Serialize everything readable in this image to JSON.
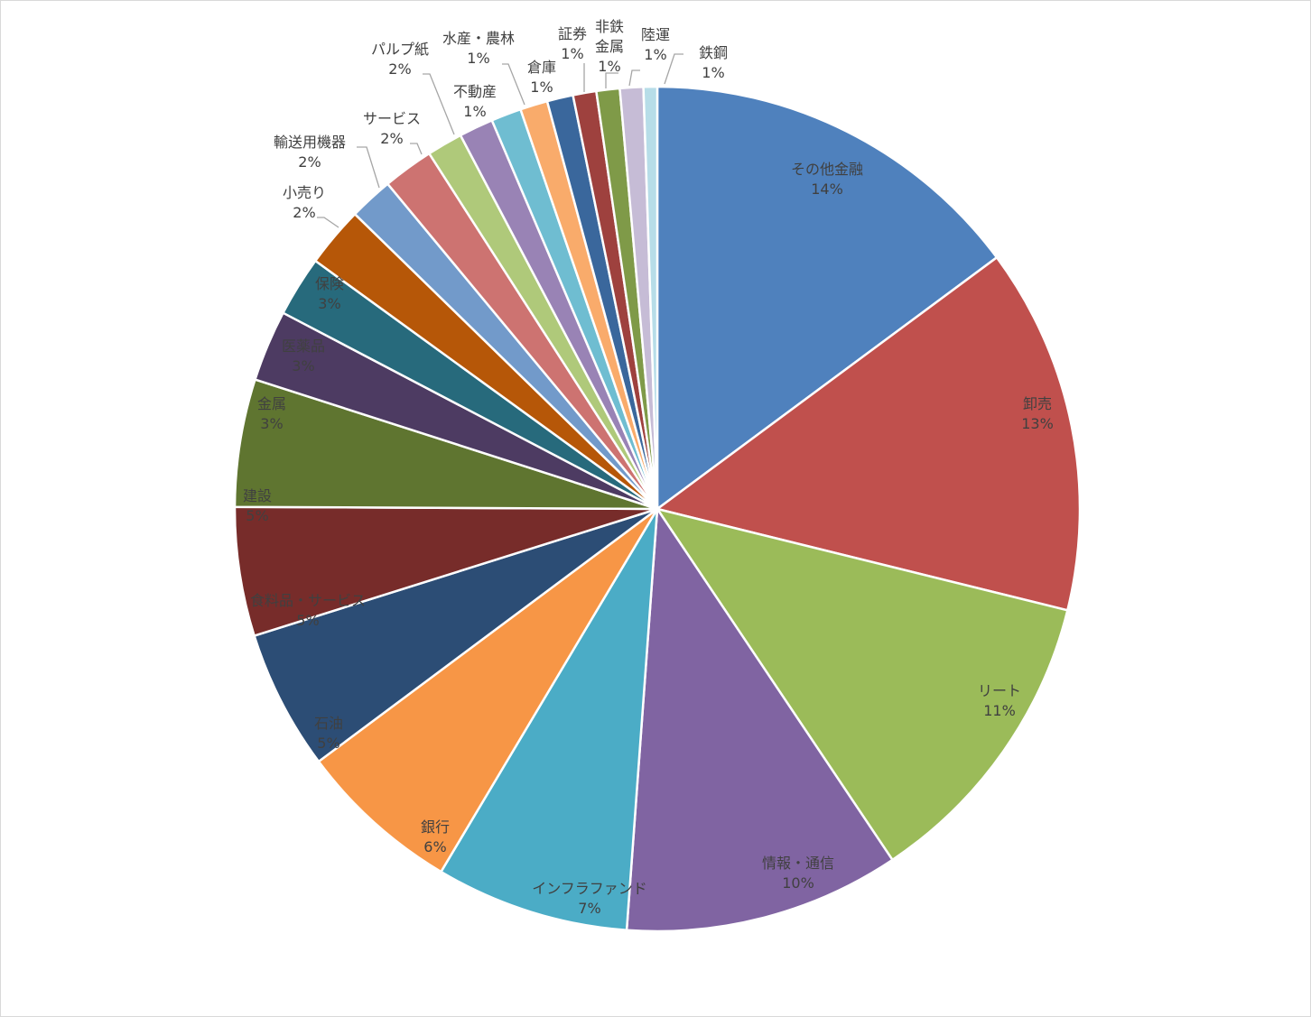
{
  "chart_data": {
    "type": "pie",
    "title": "",
    "slices": [
      {
        "label": "その他金融",
        "value": 14,
        "display": "14%",
        "color": "#4f81bd",
        "outside": false
      },
      {
        "label": "卸売",
        "value": 13,
        "display": "13%",
        "color": "#c0504d",
        "outside": false
      },
      {
        "label": "リート",
        "value": 11,
        "display": "11%",
        "color": "#9bbb59",
        "outside": false
      },
      {
        "label": "情報・通信",
        "value": 10,
        "display": "10%",
        "color": "#8064a2",
        "outside": false
      },
      {
        "label": "インフラファンド",
        "value": 7,
        "display": "7%",
        "color": "#4bacc6",
        "outside": false
      },
      {
        "label": "銀行",
        "value": 6,
        "display": "6%",
        "color": "#f79646",
        "outside": false
      },
      {
        "label": "石油",
        "value": 5,
        "display": "5%",
        "color": "#2c4d75",
        "outside": false
      },
      {
        "label": "食料品・サービス",
        "value": 5,
        "display": "5%",
        "color": "#772c2a",
        "outside": false
      },
      {
        "label": "建設",
        "value": 5,
        "display": "5%",
        "color": "#5f7530",
        "outside": false
      },
      {
        "label": "金属",
        "value": 3,
        "display": "3%",
        "color": "#4d3b62",
        "outside": false
      },
      {
        "label": "医薬品",
        "value": 3,
        "display": "3%",
        "color": "#276a7c",
        "outside": false
      },
      {
        "label": "保険",
        "value": 3,
        "display": "3%",
        "color": "#b65708",
        "outside": false
      },
      {
        "label": "小売り",
        "value": 2,
        "display": "2%",
        "color": "#729aca",
        "outside": true
      },
      {
        "label": "輸送用機器",
        "value": 2,
        "display": "2%",
        "color": "#cd7371",
        "outside": true
      },
      {
        "label": "サービス",
        "value": 2,
        "display": "2%",
        "color": "#afc97a",
        "outside": true
      },
      {
        "label": "パルプ紙",
        "value": 2,
        "display": "2%",
        "color": "#9983b5",
        "outside": true
      },
      {
        "label": "不動産",
        "value": 1,
        "display": "1%",
        "color": "#6fbdd1",
        "outside": true
      },
      {
        "label": "水産・農林",
        "value": 1,
        "display": "1%",
        "color": "#f9ab6b",
        "outside": true
      },
      {
        "label": "倉庫",
        "value": 1,
        "display": "1%",
        "color": "#3a679c",
        "outside": true
      },
      {
        "label": "証券",
        "value": 1,
        "display": "1%",
        "color": "#9e413e",
        "outside": true
      },
      {
        "label": "非鉄金属",
        "value": 1,
        "display": "1%",
        "color": "#7f9a48",
        "outside": true
      },
      {
        "label": "陸運",
        "value": 1,
        "display": "1%",
        "color": "#c6bcd6",
        "outside": true
      },
      {
        "label": "鉄鋼",
        "value": 1,
        "display": "1%",
        "color": "#b7dde8",
        "outside": true
      }
    ],
    "legend": "none",
    "label_color": "#404040"
  }
}
